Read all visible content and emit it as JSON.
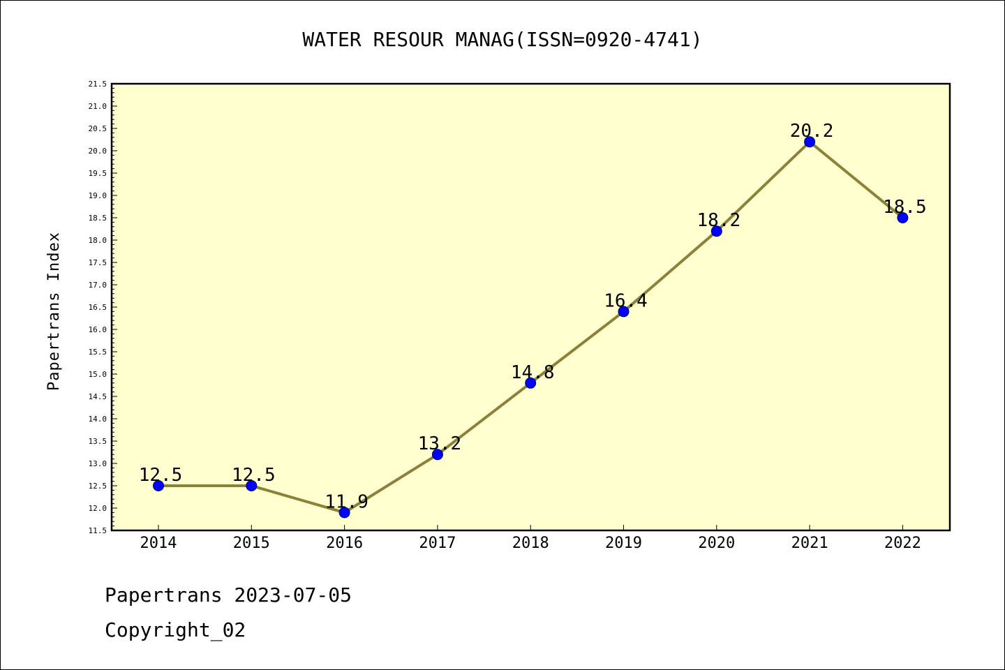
{
  "chart_data": {
    "type": "line",
    "title": "WATER RESOUR MANAG(ISSN=0920-4741)",
    "xlabel": "",
    "ylabel": "Papertrans Index",
    "categories": [
      "2014",
      "2015",
      "2016",
      "2017",
      "2018",
      "2019",
      "2020",
      "2021",
      "2022"
    ],
    "series": [
      {
        "values": [
          12.5,
          12.5,
          11.9,
          13.2,
          14.8,
          16.4,
          18.2,
          20.2,
          18.5
        ],
        "line_color": "#8b8139",
        "marker_color": "#0000ff"
      }
    ],
    "data_labels": [
      "12.5",
      "12.5",
      "11.9",
      "13.2",
      "14.8",
      "16.4",
      "18.2",
      "20.2",
      "18.5"
    ],
    "ylim": [
      11.5,
      21.5
    ],
    "yticks": [
      "11.5",
      "12.0",
      "12.5",
      "13.0",
      "13.5",
      "14.0",
      "14.5",
      "15.0",
      "15.5",
      "16.0",
      "16.5",
      "17.0",
      "17.5",
      "18.0",
      "18.5",
      "19.0",
      "19.5",
      "20.0",
      "20.5",
      "21.0",
      "21.5"
    ],
    "plot_background": "#ffffd0",
    "grid": false,
    "legend": "none"
  },
  "footer": {
    "line1": "Papertrans 2023-07-05",
    "line2": "Copyright_02"
  }
}
